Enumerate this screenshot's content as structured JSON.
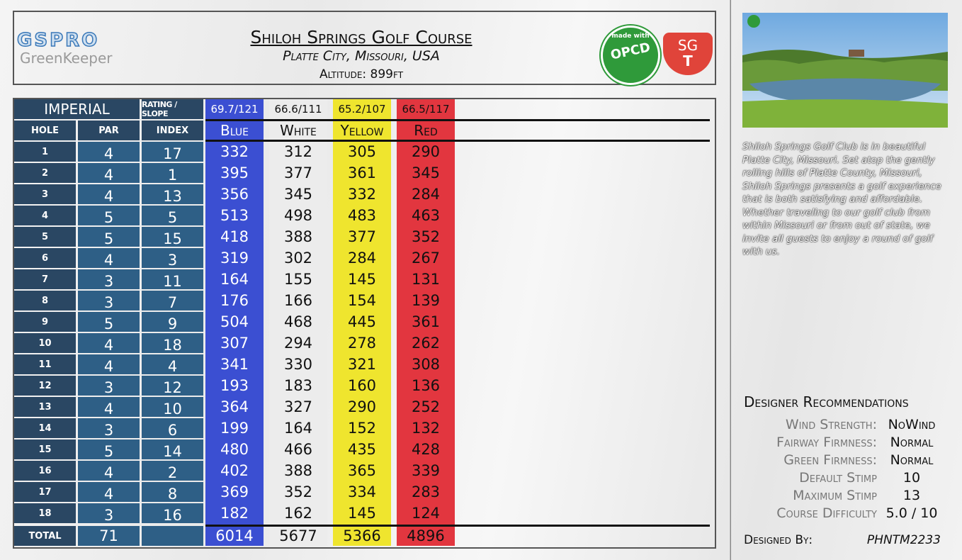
{
  "header": {
    "logo_top": "GSPRO",
    "logo_bottom": "GreenKeeper",
    "title": "Shiloh Springs Golf Course",
    "location": "Platte City, Missouri, USA",
    "altitude": "Altitude: 899ft"
  },
  "badges": {
    "opcd_top": "made with",
    "opcd": "OPCD",
    "sgt_top": "SG",
    "sgt_bottom": "T"
  },
  "scorecard": {
    "system": "IMPERIAL",
    "rating_label": "RATING / SLOPE",
    "columns": [
      "HOLE",
      "PAR",
      "INDEX"
    ],
    "holes": [
      {
        "hole": 1,
        "par": 4,
        "index": 17
      },
      {
        "hole": 2,
        "par": 4,
        "index": 1
      },
      {
        "hole": 3,
        "par": 4,
        "index": 13
      },
      {
        "hole": 4,
        "par": 5,
        "index": 5
      },
      {
        "hole": 5,
        "par": 5,
        "index": 15
      },
      {
        "hole": 6,
        "par": 4,
        "index": 3
      },
      {
        "hole": 7,
        "par": 3,
        "index": 11
      },
      {
        "hole": 8,
        "par": 3,
        "index": 7
      },
      {
        "hole": 9,
        "par": 5,
        "index": 9
      },
      {
        "hole": 10,
        "par": 4,
        "index": 18
      },
      {
        "hole": 11,
        "par": 4,
        "index": 4
      },
      {
        "hole": 12,
        "par": 3,
        "index": 12
      },
      {
        "hole": 13,
        "par": 4,
        "index": 10
      },
      {
        "hole": 14,
        "par": 3,
        "index": 6
      },
      {
        "hole": 15,
        "par": 5,
        "index": 14
      },
      {
        "hole": 16,
        "par": 4,
        "index": 2
      },
      {
        "hole": 17,
        "par": 4,
        "index": 8
      },
      {
        "hole": 18,
        "par": 3,
        "index": 16
      }
    ],
    "total_label": "TOTAL",
    "total_par": 71,
    "tees": [
      {
        "name": "Blue",
        "rating": "69.7/121",
        "color": "#3b4fd2",
        "text_color": "#ffffff",
        "yards": [
          332,
          395,
          356,
          513,
          418,
          319,
          164,
          176,
          504,
          307,
          341,
          193,
          364,
          199,
          480,
          402,
          369,
          182
        ],
        "total": 6014
      },
      {
        "name": "White",
        "rating": "66.6/111",
        "color": "#ececec",
        "text_color": "#111111",
        "yards": [
          312,
          377,
          345,
          498,
          388,
          302,
          155,
          166,
          468,
          294,
          330,
          183,
          327,
          164,
          466,
          388,
          352,
          162
        ],
        "total": 5677
      },
      {
        "name": "Yellow",
        "rating": "65.2/107",
        "color": "#efe52e",
        "text_color": "#111111",
        "yards": [
          305,
          361,
          332,
          483,
          377,
          284,
          145,
          154,
          445,
          278,
          321,
          160,
          290,
          152,
          435,
          365,
          334,
          145
        ],
        "total": 5366
      },
      {
        "name": "Red",
        "rating": "66.5/117",
        "color": "#e2363f",
        "text_color": "#111111",
        "yards": [
          290,
          345,
          284,
          463,
          352,
          267,
          131,
          139,
          361,
          262,
          308,
          136,
          252,
          132,
          428,
          339,
          283,
          124
        ],
        "total": 4896
      }
    ]
  },
  "description": "Shiloh Springs Golf Club is in beautiful Platte City, Missouri. Set atop the gently rolling hills of Platte County, Missouri, Shiloh Springs presents a golf experience that is both satisfying and affordable. Whether traveling to our golf club from within Missouri or from out of state, we invite all guests to enjoy a round of golf with us.",
  "recommendations": {
    "heading": "Designer Recommendations",
    "items": [
      {
        "label": "Wind Strength:",
        "value": "NoWind"
      },
      {
        "label": "Fairway Firmness:",
        "value": "Normal"
      },
      {
        "label": "Green Firmness:",
        "value": "Normal"
      },
      {
        "label": "Default Stimp",
        "value": "10"
      },
      {
        "label": "Maximum Stimp",
        "value": "13"
      },
      {
        "label": "Course Difficulty",
        "value": "5.0 / 10"
      }
    ]
  },
  "designer": {
    "label": "Designed By:",
    "value": "PHNTM2233"
  }
}
